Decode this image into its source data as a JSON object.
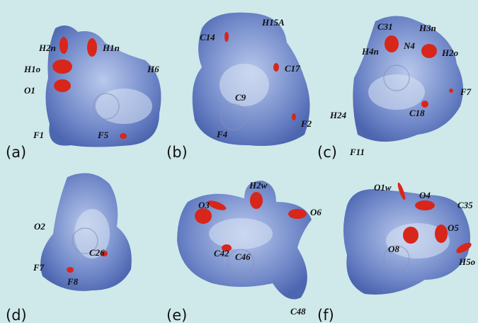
{
  "panels": [
    {
      "tag": "(a)",
      "labels": [
        "H2n",
        "H1n",
        "H1o",
        "O1",
        "H6",
        "F1",
        "F5"
      ]
    },
    {
      "tag": "(b)",
      "labels": [
        "H15A",
        "C14",
        "C17",
        "C9",
        "F4",
        "F2"
      ]
    },
    {
      "tag": "(c)",
      "labels": [
        "C31",
        "H3n",
        "H4n",
        "N4",
        "H2o",
        "F7",
        "H24",
        "C18",
        "F11"
      ]
    },
    {
      "tag": "(d)",
      "labels": [
        "O2",
        "F7",
        "C26",
        "F8"
      ]
    },
    {
      "tag": "(e)",
      "labels": [
        "H2w",
        "O3",
        "O6",
        "C42",
        "C46",
        "C48"
      ]
    },
    {
      "tag": "(f)",
      "labels": [
        "O1w",
        "O4",
        "C35",
        "O5",
        "O8",
        "H5o"
      ]
    }
  ]
}
